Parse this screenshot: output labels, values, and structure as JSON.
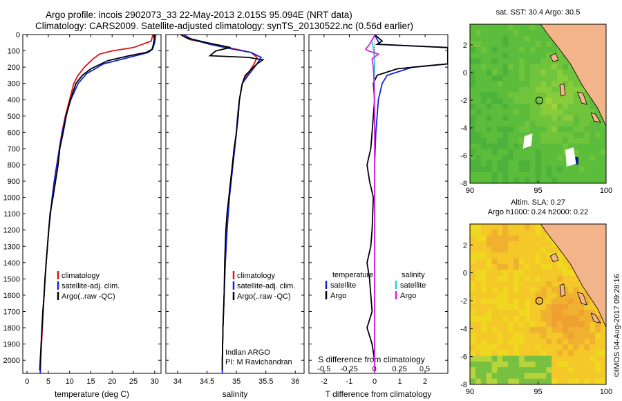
{
  "header": {
    "line1": "Argo profile: incois 2902073_33 22-May-2013 2.015S 95.094E (NRT data)",
    "line2": "Climatology: CARS2009. Satellite-adjusted climatology: synTS_20130522.nc (0.56d earlier)"
  },
  "side_label": "©IMOS 04-Aug-2017 09:28:16",
  "chart_data": [
    {
      "id": "temperature",
      "type": "line",
      "xlabel": "temperature (deg C)",
      "ylabel": "",
      "xlim": [
        -1,
        31.5
      ],
      "ylim": [
        2080,
        0
      ],
      "xticks": [
        0,
        5,
        10,
        15,
        20,
        25,
        30
      ],
      "yticks": [
        0,
        100,
        200,
        300,
        400,
        500,
        600,
        700,
        800,
        900,
        1000,
        1100,
        1200,
        1300,
        1400,
        1500,
        1600,
        1700,
        1800,
        1900,
        2000
      ],
      "legend": [
        "climatology",
        "satellite-adj. clim.",
        "Argo(..raw -QC)"
      ],
      "series": [
        {
          "name": "climatology",
          "color": "#e01010",
          "points": [
            [
              29.6,
              0
            ],
            [
              29.2,
              40
            ],
            [
              25,
              80
            ],
            [
              20,
              100
            ],
            [
              17,
              120
            ],
            [
              15.5,
              150
            ],
            [
              13.5,
              200
            ],
            [
              12,
              250
            ],
            [
              11,
              300
            ],
            [
              10,
              400
            ],
            [
              9,
              500
            ],
            [
              8.2,
              600
            ],
            [
              7.6,
              700
            ],
            [
              7,
              800
            ],
            [
              6.4,
              900
            ],
            [
              5.9,
              1000
            ],
            [
              5.1,
              1200
            ],
            [
              4.5,
              1400
            ],
            [
              4,
              1600
            ],
            [
              3.6,
              1800
            ],
            [
              3.2,
              2000
            ],
            [
              3.1,
              2080
            ]
          ]
        },
        {
          "name": "satellite-adj. clim.",
          "color": "#1020e0",
          "points": [
            [
              30.3,
              0
            ],
            [
              30,
              50
            ],
            [
              29.5,
              90
            ],
            [
              28.5,
              110
            ],
            [
              24,
              140
            ],
            [
              18,
              180
            ],
            [
              14,
              240
            ],
            [
              12,
              300
            ],
            [
              10.3,
              400
            ],
            [
              9.1,
              500
            ],
            [
              8.3,
              600
            ],
            [
              7.6,
              700
            ],
            [
              7,
              800
            ],
            [
              6.4,
              900
            ],
            [
              5.9,
              1000
            ],
            [
              5.1,
              1200
            ],
            [
              4.5,
              1400
            ],
            [
              4,
              1600
            ],
            [
              3.5,
              1800
            ],
            [
              3.2,
              2000
            ],
            [
              3.1,
              2080
            ]
          ]
        },
        {
          "name": "Argo(..raw -QC)",
          "color": "#000000",
          "points": [
            [
              29.8,
              0
            ],
            [
              29.9,
              30
            ],
            [
              29.7,
              60
            ],
            [
              29.4,
              90
            ],
            [
              28,
              110
            ],
            [
              24,
              130
            ],
            [
              19,
              160
            ],
            [
              15,
              210
            ],
            [
              13,
              250
            ],
            [
              11.5,
              300
            ],
            [
              10.2,
              400
            ],
            [
              9.2,
              500
            ],
            [
              8.5,
              600
            ],
            [
              7.7,
              700
            ],
            [
              7.3,
              800
            ],
            [
              6.7,
              900
            ],
            [
              6.1,
              1000
            ],
            [
              5.4,
              1100
            ],
            [
              5.1,
              1200
            ],
            [
              4.8,
              1300
            ],
            [
              4.5,
              1400
            ],
            [
              4.2,
              1500
            ],
            [
              4,
              1600
            ],
            [
              3.7,
              1700
            ],
            [
              3.5,
              1800
            ],
            [
              3.3,
              1900
            ],
            [
              3.1,
              2000
            ],
            [
              3,
              2060
            ]
          ]
        }
      ]
    },
    {
      "id": "salinity",
      "type": "line",
      "xlabel": "salinity",
      "ylabel": "",
      "xlim": [
        33.8,
        36.15
      ],
      "ylim": [
        2080,
        0
      ],
      "xticks": [
        34,
        34.5,
        35,
        35.5,
        36
      ],
      "legend": [
        "climatology",
        "satellite-adj. clim.",
        "Argo(..raw -QC)"
      ],
      "annotation": [
        "Indian ARGO",
        "PI: M Ravichandran"
      ],
      "series": [
        {
          "name": "climatology",
          "color": "#e01010",
          "points": [
            [
              34.05,
              0
            ],
            [
              34.2,
              30
            ],
            [
              34.6,
              60
            ],
            [
              35,
              90
            ],
            [
              35.25,
              110
            ],
            [
              35.35,
              140
            ],
            [
              35.3,
              180
            ],
            [
              35.18,
              250
            ],
            [
              35.1,
              300
            ],
            [
              35.05,
              400
            ],
            [
              35.02,
              500
            ],
            [
              35,
              600
            ],
            [
              34.97,
              700
            ],
            [
              34.94,
              800
            ],
            [
              34.91,
              900
            ],
            [
              34.88,
              1000
            ],
            [
              34.84,
              1200
            ],
            [
              34.81,
              1400
            ],
            [
              34.79,
              1600
            ],
            [
              34.77,
              1800
            ],
            [
              34.76,
              2000
            ],
            [
              34.76,
              2080
            ]
          ]
        },
        {
          "name": "satellite-adj. clim.",
          "color": "#1020e0",
          "points": [
            [
              34.1,
              0
            ],
            [
              34.25,
              30
            ],
            [
              34.55,
              60
            ],
            [
              34.95,
              90
            ],
            [
              35.25,
              110
            ],
            [
              35.42,
              140
            ],
            [
              35.35,
              180
            ],
            [
              35.2,
              250
            ],
            [
              35.1,
              300
            ],
            [
              35.05,
              400
            ],
            [
              35.02,
              500
            ],
            [
              35,
              600
            ],
            [
              34.97,
              700
            ],
            [
              34.94,
              800
            ],
            [
              34.91,
              900
            ],
            [
              34.88,
              1000
            ],
            [
              34.84,
              1200
            ],
            [
              34.81,
              1400
            ],
            [
              34.79,
              1600
            ],
            [
              34.77,
              1800
            ],
            [
              34.76,
              2000
            ],
            [
              34.76,
              2080
            ]
          ]
        },
        {
          "name": "Argo(..raw -QC)",
          "color": "#000000",
          "points": [
            [
              34.05,
              0
            ],
            [
              34.15,
              20
            ],
            [
              34.5,
              50
            ],
            [
              34.9,
              80
            ],
            [
              34.65,
              100
            ],
            [
              34.55,
              130
            ],
            [
              35.2,
              140
            ],
            [
              35.45,
              155
            ],
            [
              35.35,
              180
            ],
            [
              35.15,
              250
            ],
            [
              35.1,
              300
            ],
            [
              35.05,
              400
            ],
            [
              35.03,
              500
            ],
            [
              35,
              600
            ],
            [
              34.96,
              700
            ],
            [
              34.93,
              800
            ],
            [
              34.9,
              900
            ],
            [
              34.87,
              1000
            ],
            [
              34.84,
              1100
            ],
            [
              34.82,
              1200
            ],
            [
              34.8,
              1400
            ],
            [
              34.79,
              1600
            ],
            [
              34.77,
              1800
            ],
            [
              34.76,
              2000
            ],
            [
              34.76,
              2060
            ]
          ]
        }
      ]
    },
    {
      "id": "differences",
      "type": "line",
      "xlabel": "T difference from climatology",
      "xlabel_top": "S difference from climatology",
      "xlim": [
        -2.6,
        2.9
      ],
      "ylim": [
        2080,
        0
      ],
      "xticks": [
        -2,
        -1,
        0,
        1,
        2
      ],
      "xticks_top": [
        -0.5,
        -0.25,
        0,
        0.25,
        0.5
      ],
      "xticklabels_top": [
        "-0.5",
        "-0.25",
        "0",
        "0.25",
        "0.5"
      ],
      "legend_left_title": "temperature",
      "legend_right_title": "salinity",
      "legend": [
        "satellite",
        "Argo",
        "satellite",
        "Argo"
      ],
      "series": [
        {
          "name": "satellite",
          "group": "temperature",
          "color": "#1020e0",
          "points": [
            [
              0,
              0
            ],
            [
              0.1,
              30
            ],
            [
              0.2,
              60
            ],
            [
              2.9,
              80
            ],
            [
              2.9,
              180
            ],
            [
              1.5,
              200
            ],
            [
              0.5,
              250
            ],
            [
              0.3,
              300
            ],
            [
              0.15,
              400
            ],
            [
              0.1,
              500
            ],
            [
              0.05,
              600
            ],
            [
              0,
              800
            ],
            [
              0,
              2080
            ]
          ]
        },
        {
          "name": "Argo",
          "group": "temperature",
          "color": "#000000",
          "points": [
            [
              0,
              0
            ],
            [
              0.3,
              40
            ],
            [
              0.1,
              60
            ],
            [
              2.9,
              80
            ],
            [
              2.9,
              180
            ],
            [
              0.9,
              210
            ],
            [
              0.1,
              250
            ],
            [
              -0.05,
              300
            ],
            [
              0,
              400
            ],
            [
              -0.1,
              600
            ],
            [
              -0.15,
              700
            ],
            [
              -0.3,
              800
            ],
            [
              -0.2,
              900
            ],
            [
              -0.05,
              1000
            ],
            [
              -0.1,
              1200
            ],
            [
              -0.15,
              1300
            ],
            [
              -0.3,
              1400
            ],
            [
              -0.2,
              1500
            ],
            [
              -0.1,
              1700
            ],
            [
              -0.3,
              1800
            ],
            [
              -0.1,
              1900
            ],
            [
              0,
              2000
            ]
          ]
        },
        {
          "name": "satellite",
          "group": "salinity",
          "color": "#20d0e0",
          "points": [
            [
              0.02,
              0
            ],
            [
              -0.12,
              40
            ],
            [
              -0.05,
              80
            ],
            [
              -0.02,
              130
            ],
            [
              0,
              200
            ],
            [
              -0.01,
              300
            ],
            [
              0,
              500
            ],
            [
              0,
              800
            ],
            [
              0,
              2080
            ]
          ]
        },
        {
          "name": "Argo",
          "group": "salinity",
          "color": "#e020e0",
          "points": [
            [
              0.02,
              0
            ],
            [
              -0.2,
              60
            ],
            [
              -0.35,
              90
            ],
            [
              -0.25,
              100
            ],
            [
              0.15,
              120
            ],
            [
              -0.1,
              150
            ],
            [
              -0.05,
              200
            ],
            [
              -0.02,
              300
            ],
            [
              0,
              500
            ],
            [
              0,
              800
            ],
            [
              0,
              2080
            ]
          ]
        }
      ]
    },
    {
      "id": "sst-map",
      "type": "heatmap",
      "title": "sat. SST: 30.4  Argo: 30.5",
      "xlim": [
        90,
        100
      ],
      "ylim": [
        -8,
        3.5
      ],
      "xticks": [
        90,
        95,
        100
      ],
      "yticks": [
        -8,
        -6,
        -4,
        -2,
        0,
        2
      ],
      "argo_position": [
        95.094,
        -2.015
      ]
    },
    {
      "id": "sla-map",
      "type": "heatmap",
      "title_line1": "Altim. SLA: 0.27",
      "title_line2": "Argo h1000: 0.24  h2000: 0.22",
      "xlim": [
        90,
        100
      ],
      "ylim": [
        -8,
        3.5
      ],
      "xticks": [
        90,
        95,
        100
      ],
      "yticks": [
        -8,
        -6,
        -4,
        -2,
        0,
        2
      ],
      "argo_position": [
        95.094,
        -2.015
      ]
    }
  ]
}
